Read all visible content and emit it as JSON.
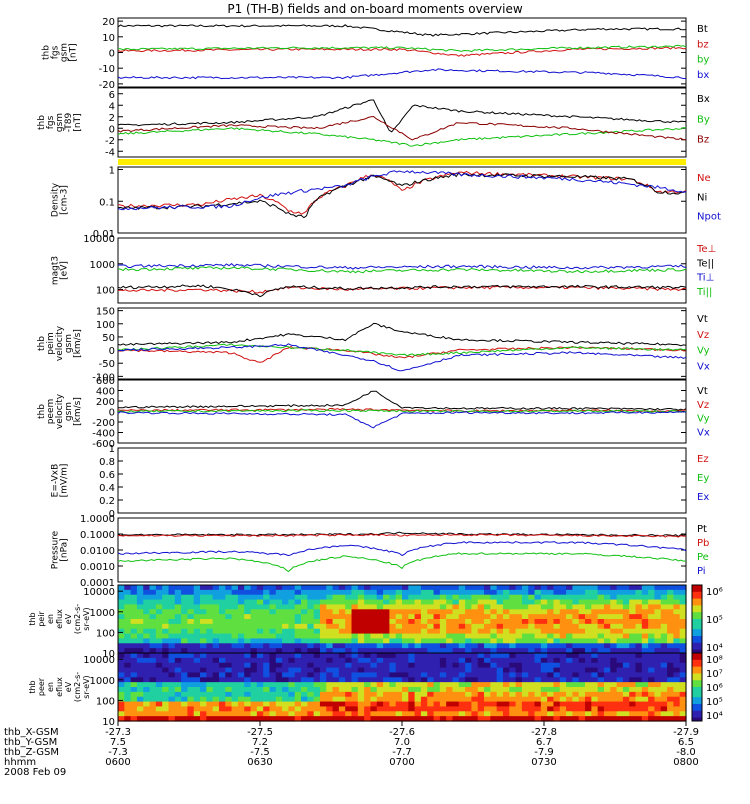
{
  "chart_data": {
    "type": "line",
    "title": "P1 (TH-B) fields and on-board moments overview",
    "panels": [
      {
        "ylabel": [
          "thb",
          "fgs",
          "gsm",
          "[nT]"
        ],
        "yticks": [
          20,
          10,
          0,
          -10,
          -20
        ],
        "ylim": [
          -22,
          22
        ],
        "scale": "linear",
        "series": [
          {
            "name": "Bt",
            "color": "#000000",
            "x": [
              0,
              0.2,
              0.4,
              0.55,
              0.7,
              0.85,
              1.0
            ],
            "values": [
              17,
              17,
              17,
              11,
              13,
              15,
              15
            ]
          },
          {
            "name": "bz",
            "color": "#d01010",
            "x": [
              0,
              0.3,
              0.5,
              0.6,
              0.8,
              1.0
            ],
            "values": [
              1,
              2,
              2,
              -2,
              2,
              3
            ]
          },
          {
            "name": "by",
            "color": "#10c010",
            "x": [
              0,
              0.3,
              0.5,
              0.6,
              0.8,
              1.0
            ],
            "values": [
              2,
              3,
              3,
              1,
              3,
              4
            ]
          },
          {
            "name": "bx",
            "color": "#1010d0",
            "x": [
              0,
              0.2,
              0.4,
              0.55,
              0.7,
              0.85,
              1.0
            ],
            "values": [
              -16,
              -16,
              -16,
              -11,
              -12,
              -13,
              -16
            ]
          }
        ]
      },
      {
        "ylabel": [
          "thb",
          "fgs",
          "gsm",
          "-T89",
          "[nT]"
        ],
        "yticks": [
          6,
          4,
          2,
          0,
          -2,
          -4
        ],
        "ylim": [
          -5,
          7
        ],
        "scale": "linear",
        "series": [
          {
            "name": "Bx",
            "color": "#000000",
            "x": [
              0,
              0.2,
              0.35,
              0.45,
              0.48,
              0.52,
              0.6,
              0.8,
              1.0
            ],
            "values": [
              0.5,
              1,
              2,
              5,
              -1,
              4,
              3,
              2,
              1
            ]
          },
          {
            "name": "By",
            "color": "#10c010",
            "x": [
              0,
              0.2,
              0.35,
              0.45,
              0.52,
              0.6,
              0.8,
              1.0
            ],
            "values": [
              -1,
              0,
              -1,
              -2,
              -3,
              -2,
              -1,
              0
            ]
          },
          {
            "name": "Bz",
            "color": "#8b0000",
            "x": [
              0,
              0.2,
              0.35,
              0.45,
              0.52,
              0.6,
              0.8,
              1.0
            ],
            "values": [
              -0.5,
              0.5,
              0,
              2,
              -2,
              1,
              0,
              -2
            ]
          }
        ]
      },
      {
        "ylabel": [
          "Density",
          "[cm-3]"
        ],
        "yticks": [
          1.0,
          0.1,
          0.01
        ],
        "ylim": [
          0.01,
          1.2
        ],
        "scale": "log",
        "series": [
          {
            "name": "Ne",
            "color": "#d01010",
            "x": [
              0,
              0.15,
              0.25,
              0.3,
              0.33,
              0.4,
              0.45,
              0.5,
              0.6,
              0.8,
              0.9,
              0.95,
              1.0
            ],
            "values": [
              0.07,
              0.08,
              0.15,
              0.05,
              0.04,
              0.3,
              0.7,
              0.2,
              0.8,
              0.6,
              0.5,
              0.2,
              0.2
            ]
          },
          {
            "name": "Ni",
            "color": "#000000",
            "x": [
              0,
              0.15,
              0.25,
              0.3,
              0.33,
              0.4,
              0.45,
              0.5,
              0.6,
              0.8,
              0.9,
              0.95,
              1.0
            ],
            "values": [
              0.06,
              0.07,
              0.1,
              0.04,
              0.03,
              0.3,
              0.6,
              0.3,
              0.7,
              0.6,
              0.5,
              0.2,
              0.18
            ]
          },
          {
            "name": "Npot",
            "color": "#1010d0",
            "x": [
              0,
              0.2,
              0.4,
              0.5,
              0.6,
              0.8,
              1.0
            ],
            "values": [
              0.06,
              0.07,
              0.3,
              0.9,
              0.7,
              0.5,
              0.2
            ]
          }
        ]
      },
      {
        "ylabel": [
          "magt3",
          "[eV]"
        ],
        "yticks": [
          10000,
          1000,
          100
        ],
        "ylim": [
          30,
          10000
        ],
        "scale": "log",
        "series": [
          {
            "name": "Te⊥",
            "color": "#d01010",
            "x": [
              0,
              0.15,
              0.25,
              0.3,
              0.4,
              0.6,
              0.8,
              1.0
            ],
            "values": [
              90,
              100,
              80,
              120,
              100,
              120,
              120,
              100
            ]
          },
          {
            "name": "Te||",
            "color": "#000000",
            "x": [
              0,
              0.15,
              0.25,
              0.3,
              0.4,
              0.6,
              0.8,
              1.0
            ],
            "values": [
              120,
              140,
              60,
              130,
              110,
              130,
              130,
              120
            ]
          },
          {
            "name": "Ti⊥",
            "color": "#1010d0",
            "x": [
              0,
              0.2,
              0.4,
              0.6,
              0.8,
              1.0
            ],
            "values": [
              800,
              900,
              700,
              800,
              700,
              800
            ]
          },
          {
            "name": "Ti||",
            "color": "#10c010",
            "x": [
              0,
              0.2,
              0.4,
              0.6,
              0.8,
              1.0
            ],
            "values": [
              600,
              700,
              500,
              600,
              500,
              600
            ]
          }
        ]
      },
      {
        "ylabel": [
          "thb",
          "peim",
          "velocity",
          "gsm",
          "[km/s]"
        ],
        "yticks": [
          150,
          100,
          50,
          0,
          -50,
          -100
        ],
        "ylim": [
          -110,
          160
        ],
        "scale": "linear",
        "series": [
          {
            "name": "Vt",
            "color": "#000000",
            "x": [
              0,
              0.2,
              0.3,
              0.4,
              0.45,
              0.5,
              0.6,
              0.8,
              1.0
            ],
            "values": [
              20,
              30,
              60,
              40,
              100,
              70,
              40,
              30,
              20
            ]
          },
          {
            "name": "Vz",
            "color": "#d01010",
            "x": [
              0,
              0.2,
              0.25,
              0.3,
              0.4,
              0.5,
              0.6,
              0.8,
              1.0
            ],
            "values": [
              0,
              -10,
              -50,
              10,
              0,
              -30,
              0,
              10,
              0
            ]
          },
          {
            "name": "Vy",
            "color": "#10c010",
            "x": [
              0,
              0.2,
              0.3,
              0.4,
              0.5,
              0.6,
              0.8,
              1.0
            ],
            "values": [
              0,
              20,
              10,
              0,
              -20,
              -10,
              10,
              0
            ]
          },
          {
            "name": "Vx",
            "color": "#1010d0",
            "x": [
              0,
              0.2,
              0.3,
              0.45,
              0.5,
              0.6,
              0.8,
              1.0
            ],
            "values": [
              0,
              10,
              20,
              -40,
              -80,
              -20,
              -10,
              -30
            ]
          }
        ]
      },
      {
        "ylabel": [
          "thb",
          "peem",
          "velocity",
          "gsm",
          "[km/s]"
        ],
        "yticks": [
          600,
          400,
          200,
          0,
          -200,
          -400,
          -600
        ],
        "ylim": [
          -600,
          600
        ],
        "scale": "linear",
        "series": [
          {
            "name": "Vt",
            "color": "#000000",
            "x": [
              0,
              0.2,
              0.4,
              0.45,
              0.5,
              0.6,
              0.8,
              1.0
            ],
            "values": [
              80,
              100,
              120,
              400,
              80,
              60,
              60,
              40
            ]
          },
          {
            "name": "Vz",
            "color": "#d01010",
            "x": [
              0,
              0.2,
              0.4,
              0.5,
              0.6,
              0.8,
              1.0
            ],
            "values": [
              20,
              30,
              40,
              30,
              10,
              20,
              10
            ]
          },
          {
            "name": "Vy",
            "color": "#10c010",
            "x": [
              0,
              0.2,
              0.4,
              0.5,
              0.6,
              0.8,
              1.0
            ],
            "values": [
              0,
              10,
              20,
              10,
              0,
              10,
              0
            ]
          },
          {
            "name": "Vx",
            "color": "#1010d0",
            "x": [
              0,
              0.2,
              0.4,
              0.45,
              0.5,
              0.6,
              0.8,
              1.0
            ],
            "values": [
              -20,
              -40,
              -60,
              -300,
              -40,
              -20,
              -30,
              -10
            ]
          }
        ]
      },
      {
        "ylabel": [
          "E=-VxB",
          "[mV/m]"
        ],
        "yticks": [
          1.0,
          0.8,
          0.6,
          0.4,
          0.2,
          0.0
        ],
        "ylim": [
          0,
          1
        ],
        "scale": "linear",
        "series": [
          {
            "name": "Ez",
            "color": "#d01010",
            "x": [],
            "values": []
          },
          {
            "name": "Ey",
            "color": "#10c010",
            "x": [],
            "values": []
          },
          {
            "name": "Ex",
            "color": "#1010d0",
            "x": [],
            "values": []
          }
        ]
      },
      {
        "ylabel": [
          "Pressure",
          "[nPa]"
        ],
        "yticks": [
          1.0,
          0.1,
          0.01,
          0.001,
          0.0001
        ],
        "tick_labels": [
          "1.0000",
          "0.1000",
          "0.0100",
          "0.0010",
          "0.0001"
        ],
        "ylim": [
          0.0001,
          1.0
        ],
        "scale": "log",
        "series": [
          {
            "name": "Pt",
            "color": "#000000",
            "x": [
              0,
              0.3,
              0.45,
              0.5,
              0.6,
              0.8,
              1.0
            ],
            "values": [
              0.09,
              0.09,
              0.1,
              0.12,
              0.1,
              0.09,
              0.08
            ]
          },
          {
            "name": "Pb",
            "color": "#d01010",
            "x": [
              0,
              0.3,
              0.45,
              0.5,
              0.6,
              0.8,
              1.0
            ],
            "values": [
              0.08,
              0.08,
              0.09,
              0.08,
              0.09,
              0.08,
              0.07
            ]
          },
          {
            "name": "Pe",
            "color": "#10c010",
            "x": [
              0,
              0.2,
              0.3,
              0.4,
              0.5,
              0.6,
              0.8,
              1.0
            ],
            "values": [
              0.002,
              0.003,
              0.0005,
              0.004,
              0.0008,
              0.006,
              0.006,
              0.002
            ]
          },
          {
            "name": "Pi",
            "color": "#1010d0",
            "x": [
              0,
              0.2,
              0.3,
              0.4,
              0.5,
              0.6,
              0.8,
              1.0
            ],
            "values": [
              0.006,
              0.008,
              0.005,
              0.02,
              0.005,
              0.03,
              0.03,
              0.01
            ]
          }
        ]
      }
    ],
    "spectrograms": [
      {
        "ylabel": [
          "thb",
          "peir",
          "en",
          "eflux",
          "eV",
          "(cm2-s-",
          "sr-eV)"
        ],
        "yticks": [
          10000,
          1000,
          100,
          10
        ],
        "ylim": [
          10,
          20000
        ],
        "scale": "log",
        "colorbar_ticks": [
          "10⁶",
          "10⁵",
          "10⁴"
        ]
      },
      {
        "ylabel": [
          "thb",
          "peer",
          "en",
          "eflux",
          "eV",
          "(cm2-s-",
          "sr-eV)"
        ],
        "yticks": [
          10000,
          1000,
          100,
          10
        ],
        "ylim": [
          10,
          20000
        ],
        "scale": "log",
        "colorbar_ticks": [
          "10⁸",
          "10⁷",
          "10⁶",
          "10⁵",
          "10⁴"
        ]
      }
    ],
    "xaxis": {
      "row_labels": [
        "thb_X-GSM",
        "thb_Y-GSM",
        "thb_Z-GSM",
        "hhmm",
        "2008 Feb 09"
      ],
      "x_gsm": [
        "-27.3",
        "-27.5",
        "-27.6",
        "-27.8",
        "-27.9"
      ],
      "y_gsm": [
        "7.5",
        "7.2",
        "7.0",
        "6.7",
        "6.5"
      ],
      "z_gsm": [
        "-7.3",
        "-7.5",
        "-7.7",
        "-7.9",
        "-8.0"
      ],
      "hhmm": [
        "0600",
        "0630",
        "0700",
        "0730",
        "0800"
      ],
      "tick_fractions": [
        0,
        0.25,
        0.5,
        0.75,
        1.0
      ]
    }
  }
}
